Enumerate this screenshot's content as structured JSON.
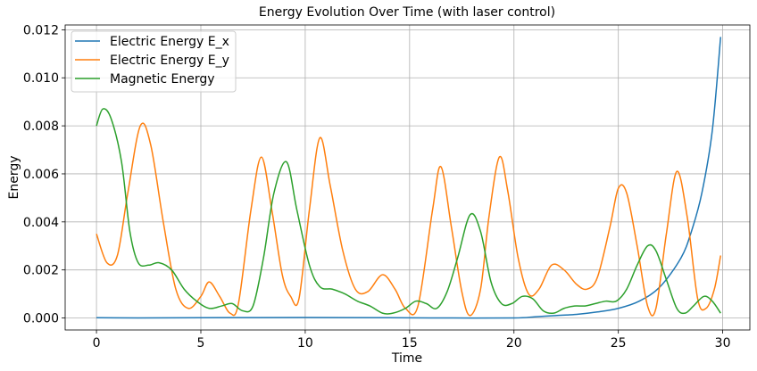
{
  "chart_data": {
    "type": "line",
    "title": "Energy Evolution Over Time (with laser control)",
    "xlabel": "Time",
    "ylabel": "Energy",
    "xlim": [
      -1.5,
      31.3
    ],
    "ylim": [
      -0.0005,
      0.0122
    ],
    "xticks": [
      0,
      5,
      10,
      15,
      20,
      25,
      30
    ],
    "xtick_labels": [
      "0",
      "5",
      "10",
      "15",
      "20",
      "25",
      "30"
    ],
    "yticks": [
      0.0,
      0.002,
      0.004,
      0.006,
      0.008,
      0.01,
      0.012
    ],
    "ytick_labels": [
      "0.000",
      "0.002",
      "0.004",
      "0.006",
      "0.008",
      "0.010",
      "0.012"
    ],
    "grid": true,
    "legend_position": "upper-left",
    "series": [
      {
        "name": "Electric Energy E_x",
        "color": "#1f77b4",
        "points": [
          [
            0,
            1e-05
          ],
          [
            2,
            0.0
          ],
          [
            5,
            1e-05
          ],
          [
            10,
            2e-05
          ],
          [
            14,
            1e-05
          ],
          [
            17,
            0.0
          ],
          [
            20,
            0.0
          ],
          [
            21,
            5e-05
          ],
          [
            22,
            0.0001
          ],
          [
            23,
            0.00015
          ],
          [
            24,
            0.00025
          ],
          [
            25,
            0.0004
          ],
          [
            26,
            0.0007
          ],
          [
            27,
            0.0013
          ],
          [
            28,
            0.0025
          ],
          [
            28.5,
            0.0036
          ],
          [
            29,
            0.0052
          ],
          [
            29.5,
            0.0078
          ],
          [
            29.9,
            0.0117
          ]
        ]
      },
      {
        "name": "Electric Energy E_y",
        "color": "#ff7f0e",
        "points": [
          [
            0,
            0.0035
          ],
          [
            0.5,
            0.0023
          ],
          [
            1,
            0.0026
          ],
          [
            1.5,
            0.0052
          ],
          [
            2.1,
            0.008
          ],
          [
            2.6,
            0.0072
          ],
          [
            3.2,
            0.004
          ],
          [
            3.8,
            0.0012
          ],
          [
            4.4,
            0.0004
          ],
          [
            5,
            0.0009
          ],
          [
            5.4,
            0.0015
          ],
          [
            5.9,
            0.0009
          ],
          [
            6.4,
            0.0002
          ],
          [
            6.8,
            0.0006
          ],
          [
            7.4,
            0.0045
          ],
          [
            7.9,
            0.0067
          ],
          [
            8.4,
            0.0045
          ],
          [
            8.9,
            0.0018
          ],
          [
            9.3,
            0.0009
          ],
          [
            9.7,
            0.0008
          ],
          [
            10.2,
            0.0045
          ],
          [
            10.7,
            0.0075
          ],
          [
            11.2,
            0.0055
          ],
          [
            11.8,
            0.0028
          ],
          [
            12.4,
            0.0012
          ],
          [
            13,
            0.0011
          ],
          [
            13.7,
            0.0018
          ],
          [
            14.3,
            0.0012
          ],
          [
            14.8,
            0.0004
          ],
          [
            15.4,
            0.0005
          ],
          [
            16.1,
            0.0045
          ],
          [
            16.5,
            0.0063
          ],
          [
            17,
            0.0038
          ],
          [
            17.5,
            0.0011
          ],
          [
            17.9,
            0.0001
          ],
          [
            18.4,
            0.0012
          ],
          [
            18.8,
            0.0042
          ],
          [
            19.3,
            0.0067
          ],
          [
            19.7,
            0.0053
          ],
          [
            20.2,
            0.0025
          ],
          [
            20.7,
            0.001
          ],
          [
            21.2,
            0.0012
          ],
          [
            21.8,
            0.0022
          ],
          [
            22.4,
            0.002
          ],
          [
            23,
            0.0014
          ],
          [
            23.5,
            0.0012
          ],
          [
            24,
            0.0017
          ],
          [
            24.6,
            0.0038
          ],
          [
            25,
            0.0054
          ],
          [
            25.4,
            0.0052
          ],
          [
            25.9,
            0.003
          ],
          [
            26.4,
            0.0005
          ],
          [
            26.8,
            0.0004
          ],
          [
            27.3,
            0.0035
          ],
          [
            27.8,
            0.0061
          ],
          [
            28.3,
            0.0042
          ],
          [
            28.8,
            0.0008
          ],
          [
            29.2,
            0.0004
          ],
          [
            29.6,
            0.0012
          ],
          [
            29.9,
            0.0026
          ]
        ]
      },
      {
        "name": "Magnetic Energy",
        "color": "#2ca02c",
        "points": [
          [
            0,
            0.008
          ],
          [
            0.3,
            0.0087
          ],
          [
            0.7,
            0.0083
          ],
          [
            1.2,
            0.0065
          ],
          [
            1.6,
            0.0036
          ],
          [
            2,
            0.0023
          ],
          [
            2.5,
            0.0022
          ],
          [
            3,
            0.0023
          ],
          [
            3.6,
            0.002
          ],
          [
            4.2,
            0.0012
          ],
          [
            4.8,
            0.0007
          ],
          [
            5.4,
            0.0004
          ],
          [
            6,
            0.0005
          ],
          [
            6.5,
            0.0006
          ],
          [
            7,
            0.0003
          ],
          [
            7.5,
            0.0005
          ],
          [
            8,
            0.0025
          ],
          [
            8.5,
            0.0052
          ],
          [
            9.1,
            0.0065
          ],
          [
            9.6,
            0.0045
          ],
          [
            10.2,
            0.0022
          ],
          [
            10.7,
            0.0013
          ],
          [
            11.3,
            0.0012
          ],
          [
            11.9,
            0.001
          ],
          [
            12.5,
            0.0007
          ],
          [
            13.1,
            0.0005
          ],
          [
            13.7,
            0.0002
          ],
          [
            14.2,
            0.0002
          ],
          [
            14.8,
            0.0004
          ],
          [
            15.3,
            0.0007
          ],
          [
            15.8,
            0.0006
          ],
          [
            16.3,
            0.0004
          ],
          [
            16.8,
            0.0011
          ],
          [
            17.3,
            0.0025
          ],
          [
            17.9,
            0.0043
          ],
          [
            18.4,
            0.0036
          ],
          [
            18.9,
            0.0015
          ],
          [
            19.4,
            0.0006
          ],
          [
            19.9,
            0.0006
          ],
          [
            20.4,
            0.0009
          ],
          [
            20.9,
            0.0008
          ],
          [
            21.4,
            0.0003
          ],
          [
            21.9,
            0.0002
          ],
          [
            22.4,
            0.0004
          ],
          [
            22.9,
            0.0005
          ],
          [
            23.4,
            0.0005
          ],
          [
            23.9,
            0.0006
          ],
          [
            24.4,
            0.0007
          ],
          [
            24.9,
            0.0007
          ],
          [
            25.4,
            0.0012
          ],
          [
            25.9,
            0.0022
          ],
          [
            26.4,
            0.003
          ],
          [
            26.8,
            0.0028
          ],
          [
            27.3,
            0.0016
          ],
          [
            27.8,
            0.0004
          ],
          [
            28.2,
            0.0002
          ],
          [
            28.6,
            0.0005
          ],
          [
            29.1,
            0.0009
          ],
          [
            29.5,
            0.0007
          ],
          [
            29.9,
            0.0002
          ]
        ]
      }
    ]
  }
}
